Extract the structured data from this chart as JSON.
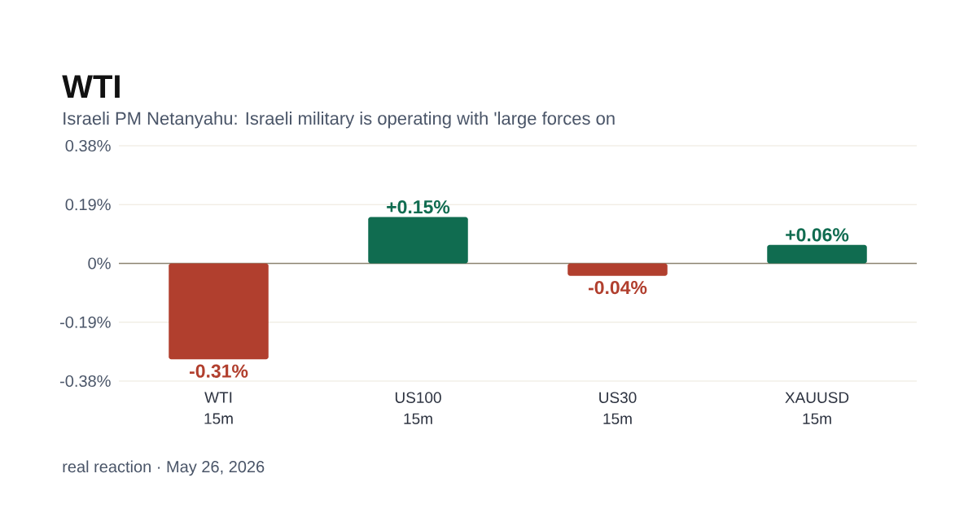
{
  "chart_data": {
    "type": "bar",
    "title": "WTI",
    "subtitle": "Israeli PM Netanyahu: Israeli military is operating with 'large forces on",
    "categories": [
      "WTI 15m",
      "US100 15m",
      "US30 15m",
      "XAUUSD 15m"
    ],
    "values": [
      -0.31,
      0.15,
      -0.04,
      0.06
    ],
    "colors": [
      "#b13f2e",
      "#106c50",
      "#b13f2e",
      "#106c50"
    ],
    "value_labels": [
      "-0.31%",
      "+0.15%",
      "-0.04%",
      "+0.06%"
    ],
    "ylim": [
      -0.38,
      0.38
    ],
    "yticks": [
      {
        "value": -0.38,
        "label": "-0.38%"
      },
      {
        "value": -0.19,
        "label": "-0.19%"
      },
      {
        "value": 0,
        "label": "0%"
      },
      {
        "value": 0.19,
        "label": "0.19%"
      },
      {
        "value": 0.38,
        "label": "0.38%"
      }
    ],
    "grid": "y",
    "annotations": [
      "real reaction · May 26, 2026"
    ]
  }
}
